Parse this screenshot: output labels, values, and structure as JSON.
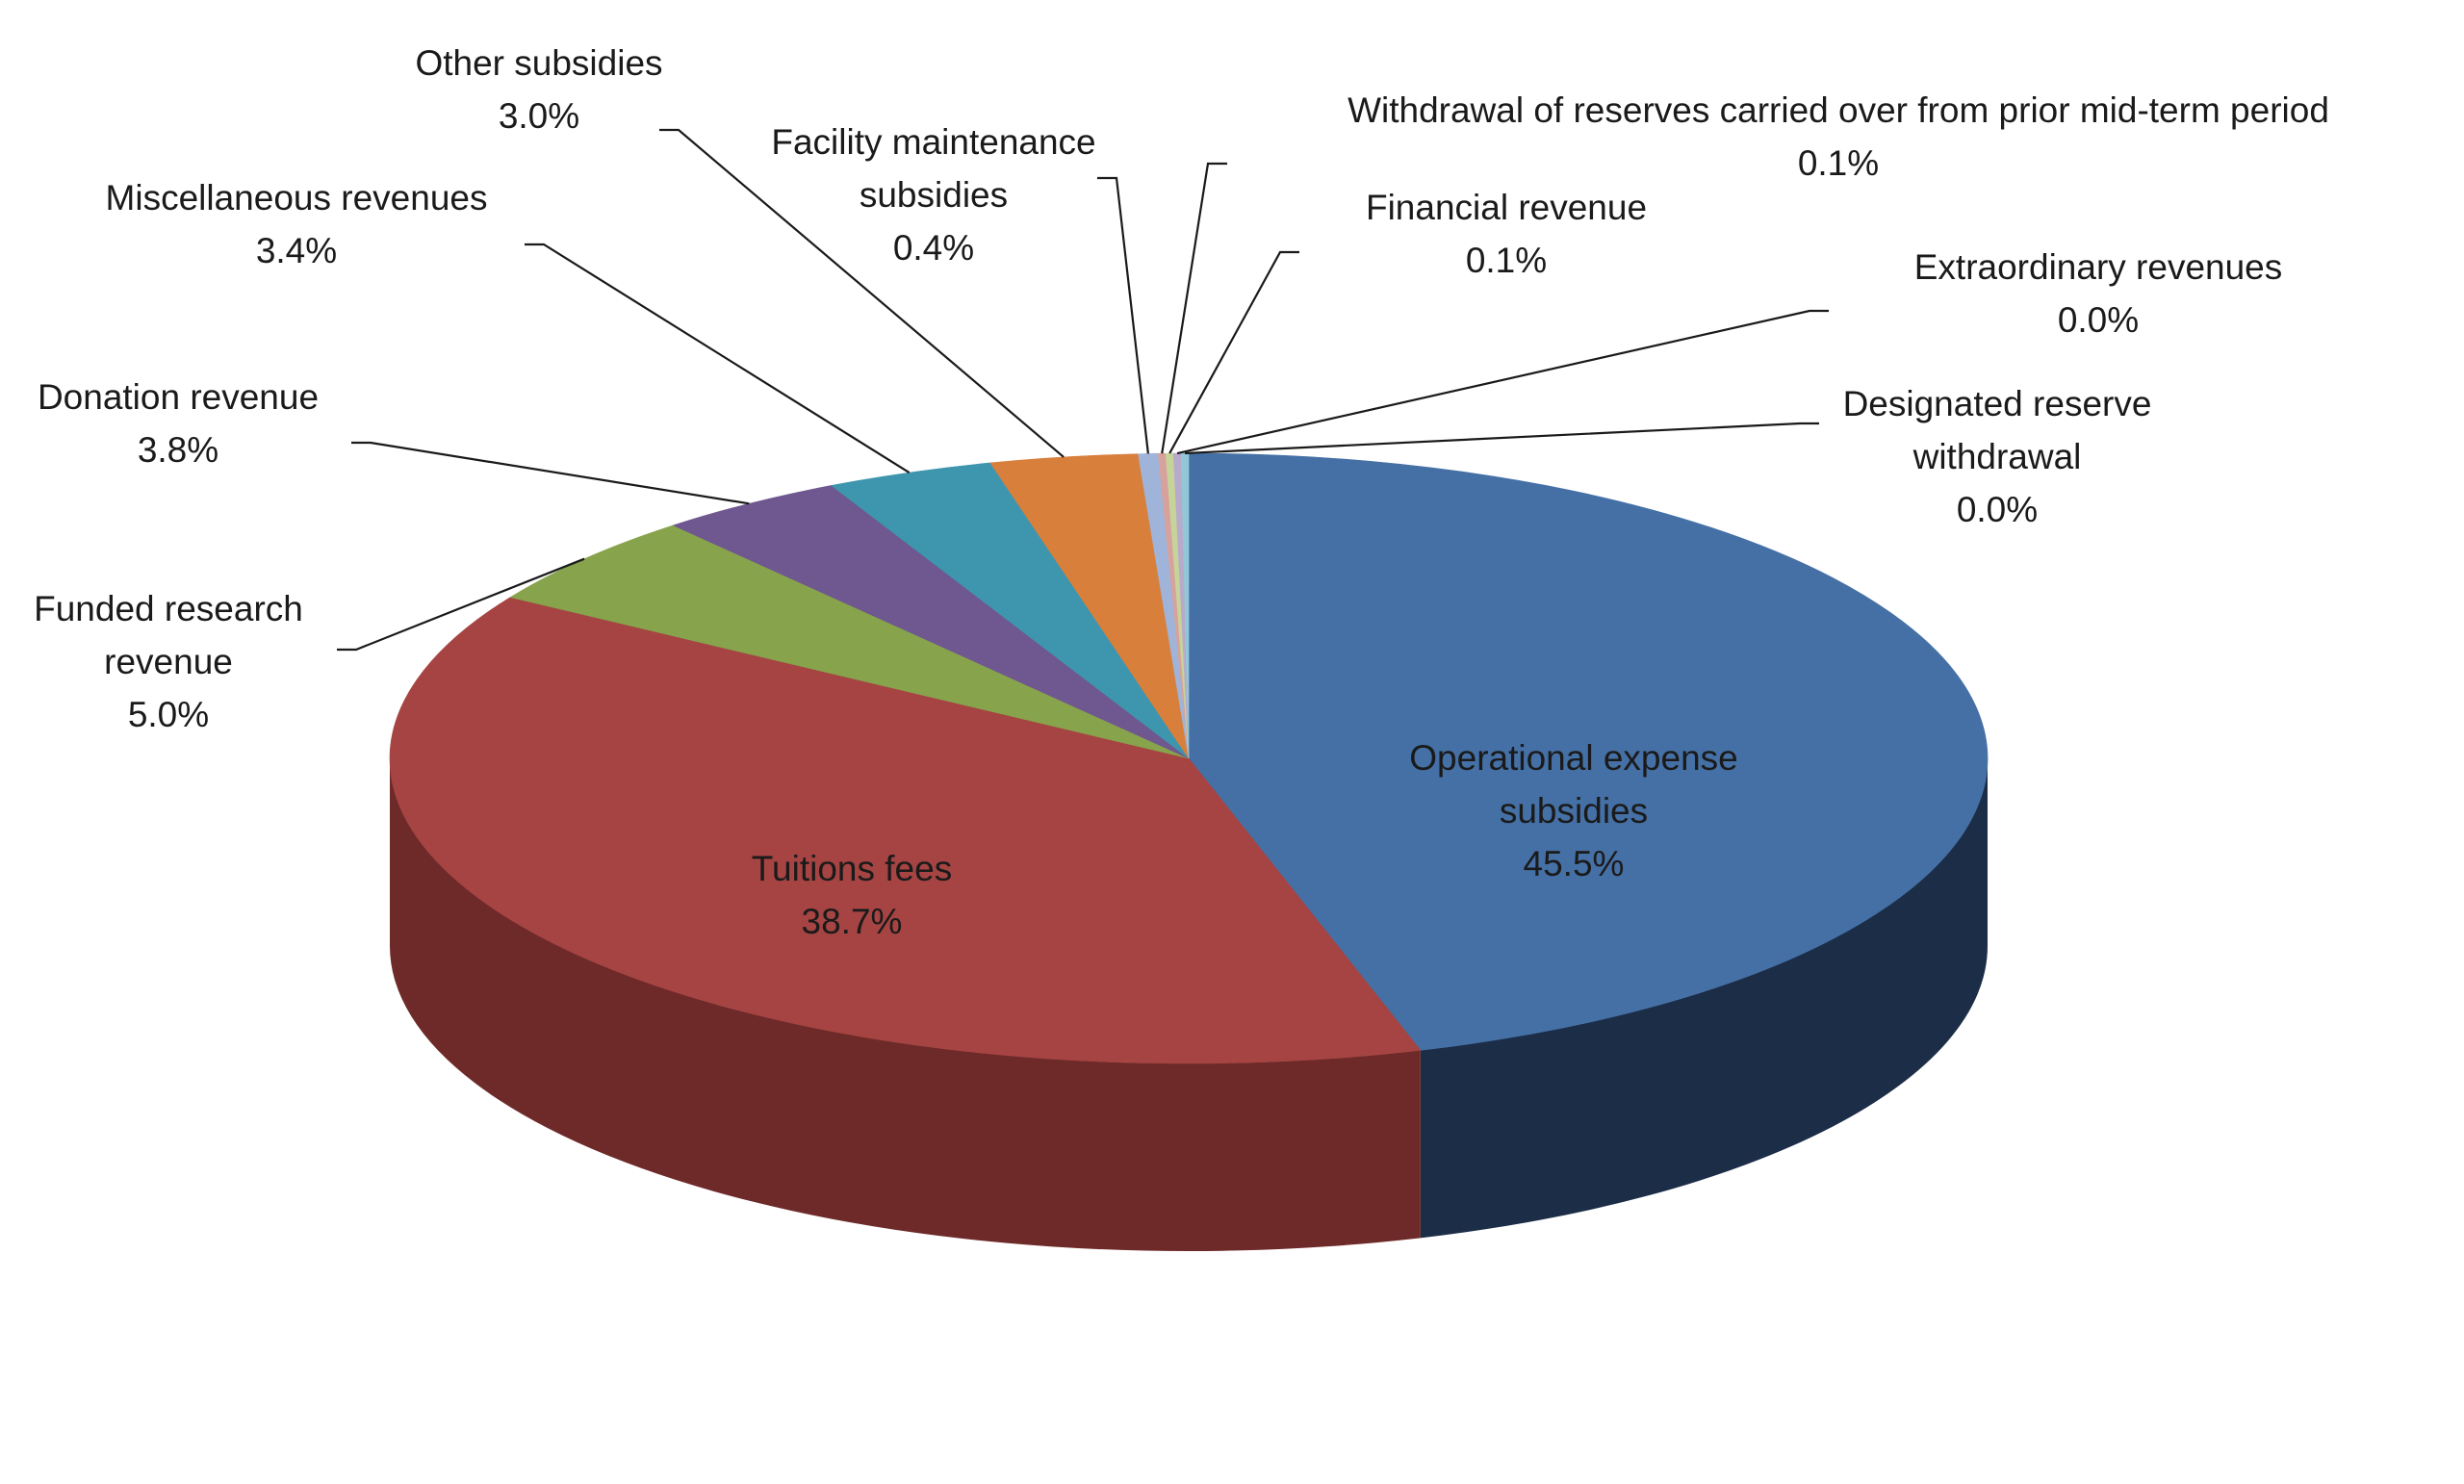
{
  "chart_data": {
    "type": "pie",
    "style": "3d-exploded-tilted",
    "title": "",
    "legend": "none",
    "unit": "%",
    "slices": [
      {
        "label": "Operational expense subsidies",
        "value": 45.5,
        "display": "45.5%",
        "color": "#4570a5",
        "side_color": "#1c2d47"
      },
      {
        "label": "Tuitions fees",
        "value": 38.7,
        "display": "38.7%",
        "color": "#a54442",
        "side_color": "#6e2a29"
      },
      {
        "label": "Funded research revenue",
        "value": 5.0,
        "display": "5.0%",
        "color": "#87a34c",
        "side_color": "#55692e"
      },
      {
        "label": "Donation revenue",
        "value": 3.8,
        "display": "3.8%",
        "color": "#6f578f",
        "side_color": "#44345a"
      },
      {
        "label": "Miscellaneous revenues",
        "value": 3.4,
        "display": "3.4%",
        "color": "#3e95ae",
        "side_color": "#245d6e"
      },
      {
        "label": "Other subsidies",
        "value": 3.0,
        "display": "3.0%",
        "color": "#d87f3b",
        "side_color": "#8a4f22"
      },
      {
        "label": "Facility maintenance subsidies",
        "value": 0.4,
        "display": "0.4%",
        "color": "#9fb4d8",
        "side_color": "#60708b"
      },
      {
        "label": "Withdrawal of reserves carried over from prior mid-term period",
        "value": 0.1,
        "display": "0.1%",
        "color": "#d7a29d",
        "side_color": "#8c6662"
      },
      {
        "label": "Financial revenue",
        "value": 0.1,
        "display": "0.1%",
        "color": "#c6d49a",
        "side_color": "#7d8a5e"
      },
      {
        "label": "Extraordinary revenues",
        "value": 0.0,
        "display": "0.0%",
        "color": "#b8aacb",
        "side_color": "#776a8a"
      },
      {
        "label": "Designated reserve withdrawal",
        "value": 0.0,
        "display": "0.0%",
        "color": "#92c7d8",
        "side_color": "#5d8290"
      }
    ]
  }
}
